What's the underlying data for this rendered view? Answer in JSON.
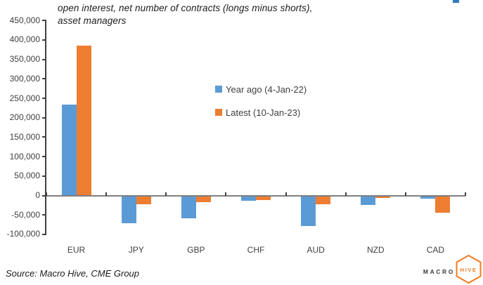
{
  "title": {
    "line1": "open interest, net number of contracts (longs minus shorts),",
    "line2": "asset managers"
  },
  "source": "Source: Macro Hive, CME Group",
  "logo": {
    "macro": "MACRO",
    "hive": "HIVE",
    "orange": "#F07B22",
    "text_dark": "#3A3A3A"
  },
  "artifact": {
    "color": "#2E79C0"
  },
  "colors": {
    "series_blue": "#5B9BD5",
    "series_orange": "#ED7D31",
    "axis": "#404040"
  },
  "chart_data": {
    "type": "bar",
    "title": "open interest, net number of contracts (longs minus shorts), asset managers",
    "xlabel": "",
    "ylabel": "",
    "categories": [
      "EUR",
      "JPY",
      "GBP",
      "CHF",
      "AUD",
      "NZD",
      "CAD"
    ],
    "series": [
      {
        "name": "Year ago (4-Jan-22)",
        "color": "#5B9BD5",
        "values": [
          233000,
          -70000,
          -57000,
          -12000,
          -76000,
          -23000,
          -6000
        ]
      },
      {
        "name": "Latest (10-Jan-23)",
        "color": "#ED7D31",
        "values": [
          385000,
          -20000,
          -16000,
          -10000,
          -20000,
          -5000,
          -42000
        ]
      }
    ],
    "ylim": [
      -100000,
      450000
    ],
    "ytick_step": 50000,
    "ytick_labels": [
      "450,000",
      "400,000",
      "350,000",
      "300,000",
      "250,000",
      "200,000",
      "150,000",
      "100,000",
      "50,000",
      "0",
      "-50,000",
      "-100,000"
    ],
    "grid": false,
    "legend_position": "inside-center-right"
  }
}
